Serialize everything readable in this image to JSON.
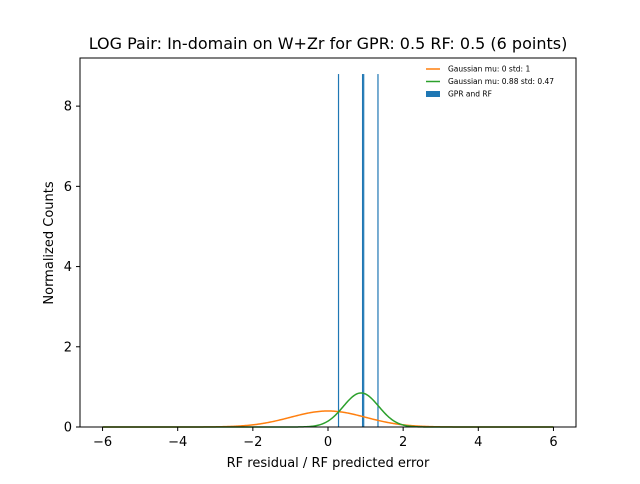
{
  "chart_data": {
    "type": "histogram",
    "title": "LOG Pair: In-domain on W+Zr for GPR: 0.5 RF: 0.5 (6 points)",
    "xlabel": "RF residual / RF predicted error",
    "ylabel": "Normalized Counts",
    "xlim": [
      -6.6,
      6.6
    ],
    "ylim": [
      0,
      9.2
    ],
    "xticks": [
      -6,
      -4,
      -2,
      0,
      2,
      4,
      6
    ],
    "xtick_labels": [
      "−6",
      "−4",
      "−2",
      "0",
      "2",
      "4",
      "6"
    ],
    "yticks": [
      0,
      2,
      4,
      6,
      8
    ],
    "ytick_labels": [
      "0",
      "2",
      "4",
      "6",
      "8"
    ],
    "grid": false,
    "legend_position": "top-right",
    "legend": [
      {
        "label": "Gaussian mu: 0 std: 1",
        "color": "#ff7f0e",
        "kind": "line"
      },
      {
        "label": "Gaussian mu: 0.88 std: 0.47",
        "color": "#2ca02c",
        "kind": "line"
      },
      {
        "label": "GPR and RF",
        "color": "#1f77b4",
        "kind": "bar"
      }
    ],
    "series": [
      {
        "name": "Gaussian mu: 0 std: 1",
        "kind": "gaussian",
        "mu": 0,
        "std": 1,
        "x_range": [
          -6,
          6
        ],
        "color": "#ff7f0e"
      },
      {
        "name": "Gaussian mu: 0.88 std: 0.47",
        "kind": "gaussian",
        "mu": 0.88,
        "std": 0.47,
        "x_range": [
          -6,
          6
        ],
        "color": "#2ca02c"
      },
      {
        "name": "GPR and RF",
        "kind": "histogram",
        "color": "#1f77b4",
        "bars": [
          {
            "x": 0.28,
            "height": 8.8
          },
          {
            "x": 0.92,
            "height": 8.8
          },
          {
            "x": 0.95,
            "height": 8.8
          },
          {
            "x": 1.33,
            "height": 8.8
          }
        ]
      }
    ]
  }
}
